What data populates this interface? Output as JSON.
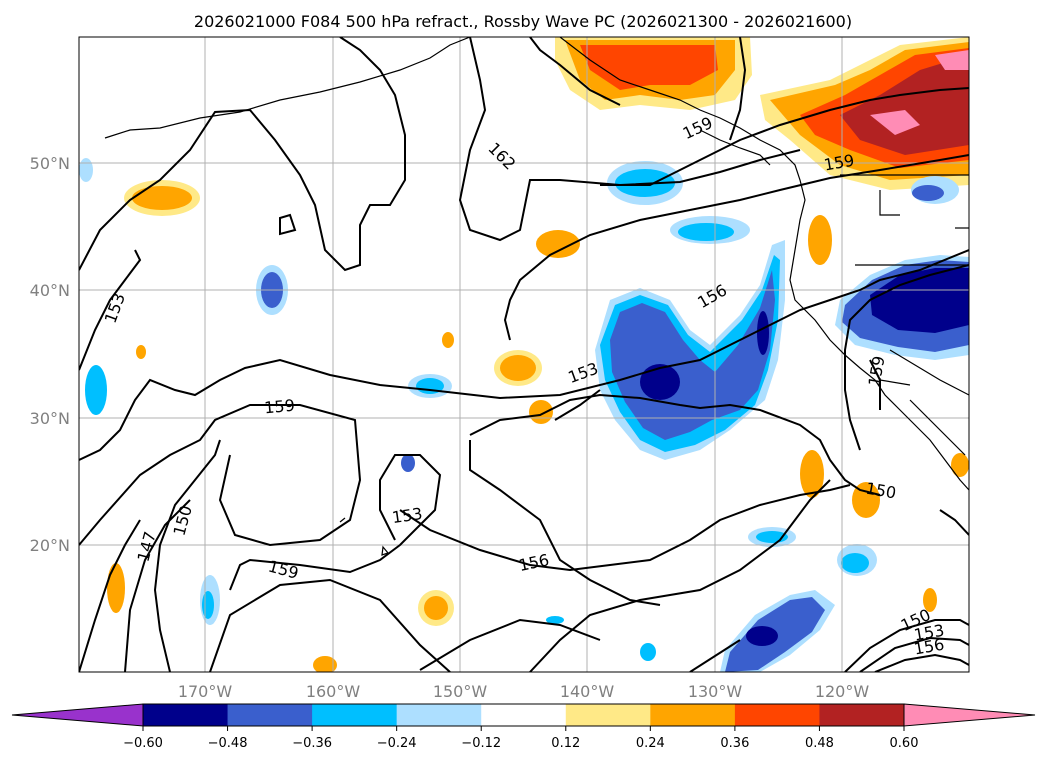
{
  "title": "2026021000 F084 500 hPa refract., Rossby Wave PC (2026021300 - 2026021600)",
  "map": {
    "lat_labels": [
      "50°N",
      "40°N",
      "30°N",
      "20°N"
    ],
    "lon_labels": [
      "170°W",
      "160°W",
      "150°W",
      "140°W",
      "130°W",
      "120°W"
    ],
    "contour_labels": [
      "162",
      "159",
      "159",
      "153",
      "156",
      "153",
      "159",
      "153",
      "156",
      "150",
      "150",
      "147",
      "159",
      "150",
      "153",
      "156",
      "159"
    ],
    "grid": true,
    "contour_color": "#000000"
  },
  "colorbar": {
    "ticks": [
      "−0.60",
      "−0.48",
      "−0.36",
      "−0.24",
      "−0.12",
      "0.12",
      "0.24",
      "0.36",
      "0.48",
      "0.60"
    ],
    "colors": [
      "#9932CC",
      "#00008B",
      "#3A5FCD",
      "#00BFFF",
      "#ADDFFF",
      "#FFFFFF",
      "#FFE987",
      "#FFA500",
      "#FF4500",
      "#B22222",
      "#FF8CB5"
    ],
    "extend": "both"
  }
}
